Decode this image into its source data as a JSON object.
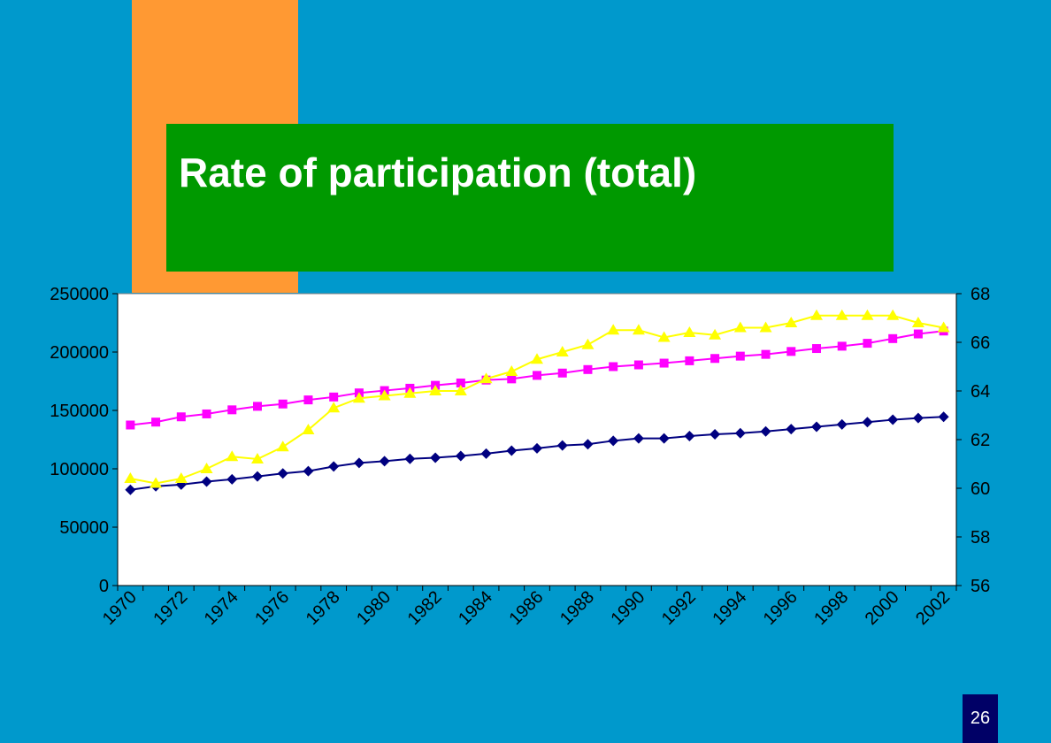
{
  "slide": {
    "title": "Rate of participation (total)",
    "page_number": "26"
  },
  "colors": {
    "background": "#0099cc",
    "accent_orange": "#ff9933",
    "title_box": "#009900",
    "page_badge": "#000066",
    "plot_area": "#ffffff",
    "series_navy": "#000080",
    "series_magenta": "#ff00ff",
    "series_yellow": "#ffff00"
  },
  "chart_data": {
    "type": "line",
    "title": "",
    "xlabel": "",
    "ylabel": "",
    "x": [
      1970,
      1971,
      1972,
      1973,
      1974,
      1975,
      1976,
      1977,
      1978,
      1979,
      1980,
      1981,
      1982,
      1983,
      1984,
      1985,
      1986,
      1987,
      1988,
      1989,
      1990,
      1991,
      1992,
      1993,
      1994,
      1995,
      1996,
      1997,
      1998,
      1999,
      2000,
      2001,
      2002
    ],
    "x_tick_labels": [
      "1970",
      "1972",
      "1974",
      "1976",
      "1978",
      "1980",
      "1982",
      "1984",
      "1986",
      "1988",
      "1990",
      "1992",
      "1994",
      "1996",
      "1998",
      "2000",
      "2002"
    ],
    "y_left": {
      "lim": [
        0,
        250000
      ],
      "ticks": [
        "0",
        "50000",
        "100000",
        "150000",
        "200000",
        "250000"
      ]
    },
    "y_right": {
      "lim": [
        56,
        68
      ],
      "ticks": [
        "56",
        "58",
        "60",
        "62",
        "64",
        "66",
        "68"
      ]
    },
    "grid": false,
    "legend": "none",
    "series": [
      {
        "axis": "left",
        "marker": "diamond",
        "color": "#000080",
        "values": [
          82000,
          85000,
          86500,
          89000,
          91000,
          93500,
          96000,
          98000,
          102000,
          105000,
          106500,
          108500,
          109500,
          111000,
          113000,
          115500,
          117500,
          120000,
          121000,
          124000,
          126000,
          126000,
          128000,
          129500,
          130500,
          132000,
          134000,
          136000,
          138000,
          140000,
          142000,
          143500,
          144500
        ]
      },
      {
        "axis": "left",
        "marker": "square",
        "color": "#ff00ff",
        "values": [
          137500,
          140000,
          144500,
          147000,
          150500,
          153500,
          155500,
          159000,
          161500,
          165000,
          167000,
          169000,
          171500,
          173500,
          176000,
          177000,
          180000,
          182000,
          185000,
          187500,
          189000,
          190500,
          192500,
          194500,
          196500,
          198000,
          200500,
          203000,
          205000,
          207500,
          211500,
          215500,
          218000
        ]
      },
      {
        "axis": "right",
        "marker": "triangle",
        "color": "#ffff00",
        "values": [
          60.4,
          60.2,
          60.4,
          60.8,
          61.3,
          61.2,
          61.7,
          62.4,
          63.3,
          63.7,
          63.8,
          63.9,
          64.0,
          64.0,
          64.5,
          64.8,
          65.3,
          65.6,
          65.9,
          66.5,
          66.5,
          66.2,
          66.4,
          66.3,
          66.6,
          66.6,
          66.8,
          67.1,
          67.1,
          67.1,
          67.1,
          66.8,
          66.6
        ]
      }
    ]
  }
}
